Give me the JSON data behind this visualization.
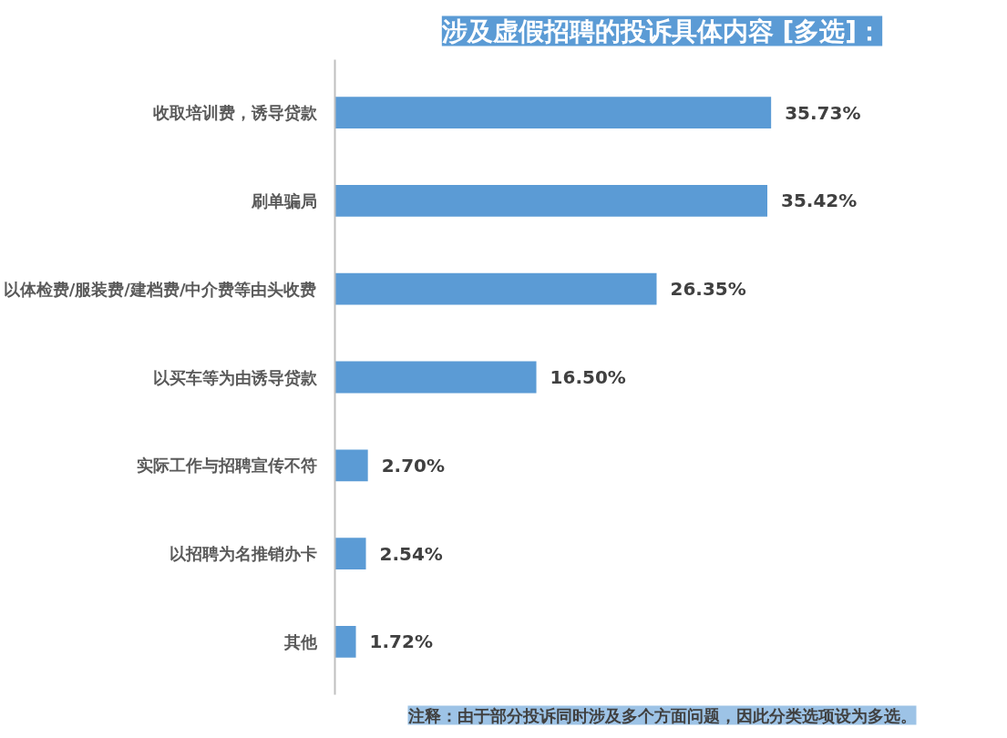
{
  "chart_data": {
    "type": "bar",
    "orientation": "horizontal",
    "title": "涉及虚假招聘的投诉具体内容 [多选]：",
    "categories": [
      "收取培训费，诱导贷款",
      "刷单骗局",
      "以体检费/服装费/建档费/中介费等由头收费",
      "以买车等为由诱导贷款",
      "实际工作与招聘宣传不符",
      "以招聘为名推销办卡",
      "其他"
    ],
    "values": [
      35.73,
      35.42,
      26.35,
      16.5,
      2.7,
      2.54,
      1.72
    ],
    "value_labels": [
      "35.73%",
      "35.42%",
      "26.35%",
      "16.50%",
      "2.70%",
      "2.54%",
      "1.72%"
    ],
    "color": "#5b9bd5",
    "annotations": [
      "注释：由于部分投诉同时涉及多个方面问题，因此分类选项设为多选。"
    ],
    "grid": false
  }
}
